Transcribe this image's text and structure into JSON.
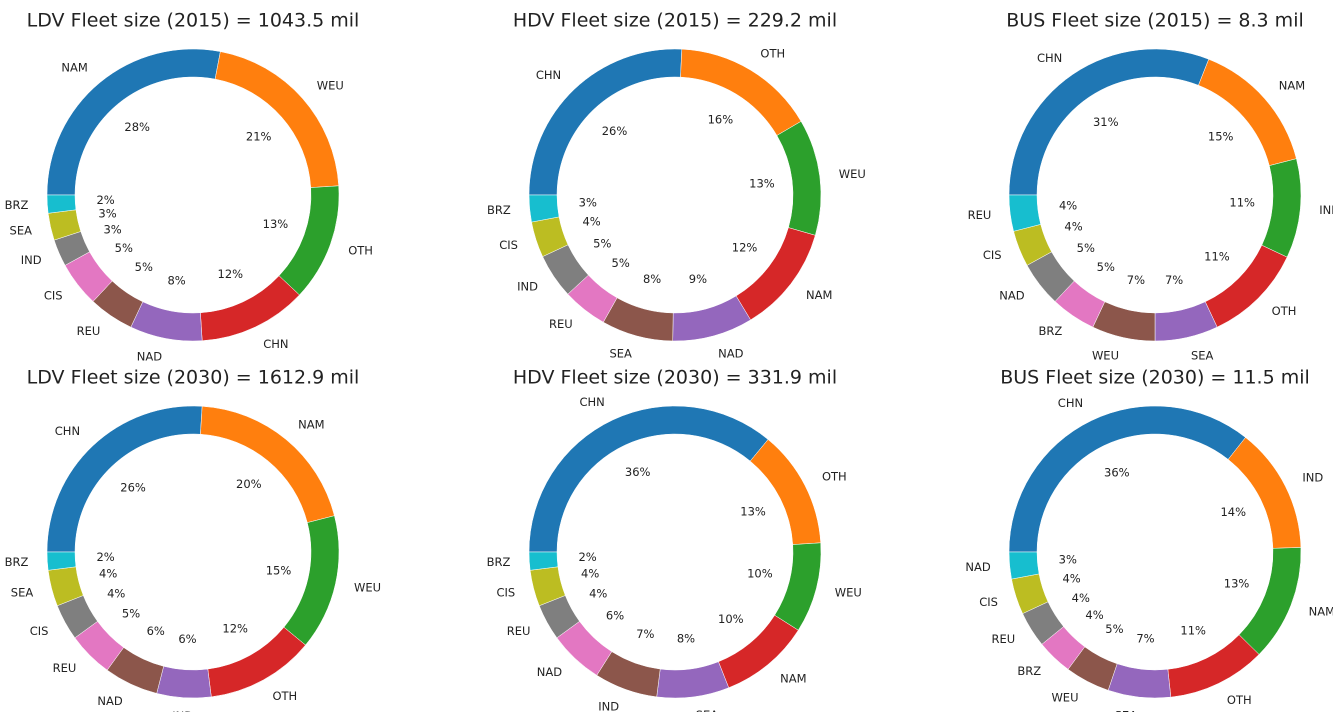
{
  "chart_data": [
    {
      "type": "pie",
      "title": "LDV Fleet size (2015) = 1043.5 mil",
      "categories": [
        "NAM",
        "WEU",
        "OTH",
        "CHN",
        "NAD",
        "REU",
        "CIS",
        "IND",
        "SEA",
        "BRZ"
      ],
      "values": [
        28,
        21,
        13,
        12,
        8,
        5,
        5,
        3,
        3,
        2
      ],
      "value_labels": [
        "28%",
        "21%",
        "13%",
        "12%",
        "8%",
        "5%",
        "5%",
        "3%",
        "3%",
        "2%"
      ],
      "colors": [
        "#1f77b4",
        "#ff7f0e",
        "#2ca02c",
        "#d62728",
        "#9467bd",
        "#8c564b",
        "#e377c2",
        "#7f7f7f",
        "#bcbd22",
        "#17becf"
      ]
    },
    {
      "type": "pie",
      "title": "HDV Fleet size (2015) = 229.2 mil",
      "categories": [
        "CHN",
        "OTH",
        "WEU",
        "NAM",
        "NAD",
        "SEA",
        "REU",
        "IND",
        "CIS",
        "BRZ"
      ],
      "values": [
        26,
        16,
        13,
        12,
        9,
        8,
        5,
        5,
        4,
        3
      ],
      "value_labels": [
        "26%",
        "16%",
        "13%",
        "12%",
        "9%",
        "8%",
        "5%",
        "5%",
        "4%",
        "3%"
      ],
      "colors": [
        "#1f77b4",
        "#ff7f0e",
        "#2ca02c",
        "#d62728",
        "#9467bd",
        "#8c564b",
        "#e377c2",
        "#7f7f7f",
        "#bcbd22",
        "#17becf"
      ]
    },
    {
      "type": "pie",
      "title": "BUS Fleet size (2015) = 8.3 mil",
      "categories": [
        "CHN",
        "NAM",
        "IND",
        "OTH",
        "SEA",
        "WEU",
        "BRZ",
        "NAD",
        "CIS",
        "REU"
      ],
      "values": [
        31,
        15,
        11,
        11,
        7,
        7,
        5,
        5,
        4,
        4
      ],
      "value_labels": [
        "31%",
        "15%",
        "11%",
        "11%",
        "7%",
        "7%",
        "5%",
        "5%",
        "4%",
        "4%"
      ],
      "colors": [
        "#1f77b4",
        "#ff7f0e",
        "#2ca02c",
        "#d62728",
        "#9467bd",
        "#8c564b",
        "#e377c2",
        "#7f7f7f",
        "#bcbd22",
        "#17becf"
      ]
    },
    {
      "type": "pie",
      "title": "LDV Fleet size (2030) = 1612.9 mil",
      "categories": [
        "CHN",
        "NAM",
        "WEU",
        "OTH",
        "IND",
        "NAD",
        "REU",
        "CIS",
        "SEA",
        "BRZ"
      ],
      "values": [
        26,
        20,
        15,
        12,
        6,
        6,
        5,
        4,
        4,
        2
      ],
      "value_labels": [
        "26%",
        "20%",
        "15%",
        "12%",
        "6%",
        "6%",
        "5%",
        "4%",
        "4%",
        "2%"
      ],
      "colors": [
        "#1f77b4",
        "#ff7f0e",
        "#2ca02c",
        "#d62728",
        "#9467bd",
        "#8c564b",
        "#e377c2",
        "#7f7f7f",
        "#bcbd22",
        "#17becf"
      ]
    },
    {
      "type": "pie",
      "title": "HDV Fleet size (2030) = 331.9 mil",
      "categories": [
        "CHN",
        "OTH",
        "WEU",
        "NAM",
        "SEA",
        "IND",
        "NAD",
        "REU",
        "CIS",
        "BRZ"
      ],
      "values": [
        36,
        13,
        10,
        10,
        8,
        7,
        6,
        4,
        4,
        2
      ],
      "value_labels": [
        "36%",
        "13%",
        "10%",
        "10%",
        "8%",
        "7%",
        "6%",
        "4%",
        "4%",
        "2%"
      ],
      "colors": [
        "#1f77b4",
        "#ff7f0e",
        "#2ca02c",
        "#d62728",
        "#9467bd",
        "#8c564b",
        "#e377c2",
        "#7f7f7f",
        "#bcbd22",
        "#17becf"
      ]
    },
    {
      "type": "pie",
      "title": "BUS Fleet size (2030) = 11.5 mil",
      "categories": [
        "CHN",
        "IND",
        "NAM",
        "OTH",
        "SEA",
        "WEU",
        "BRZ",
        "REU",
        "CIS",
        "NAD"
      ],
      "values": [
        36,
        14,
        13,
        11,
        7,
        5,
        4,
        4,
        4,
        3
      ],
      "value_labels": [
        "36%",
        "14%",
        "13%",
        "11%",
        "7%",
        "5%",
        "4%",
        "4%",
        "4%",
        "3%"
      ],
      "colors": [
        "#1f77b4",
        "#ff7f0e",
        "#2ca02c",
        "#d62728",
        "#9467bd",
        "#8c564b",
        "#e377c2",
        "#7f7f7f",
        "#bcbd22",
        "#17becf"
      ]
    }
  ]
}
